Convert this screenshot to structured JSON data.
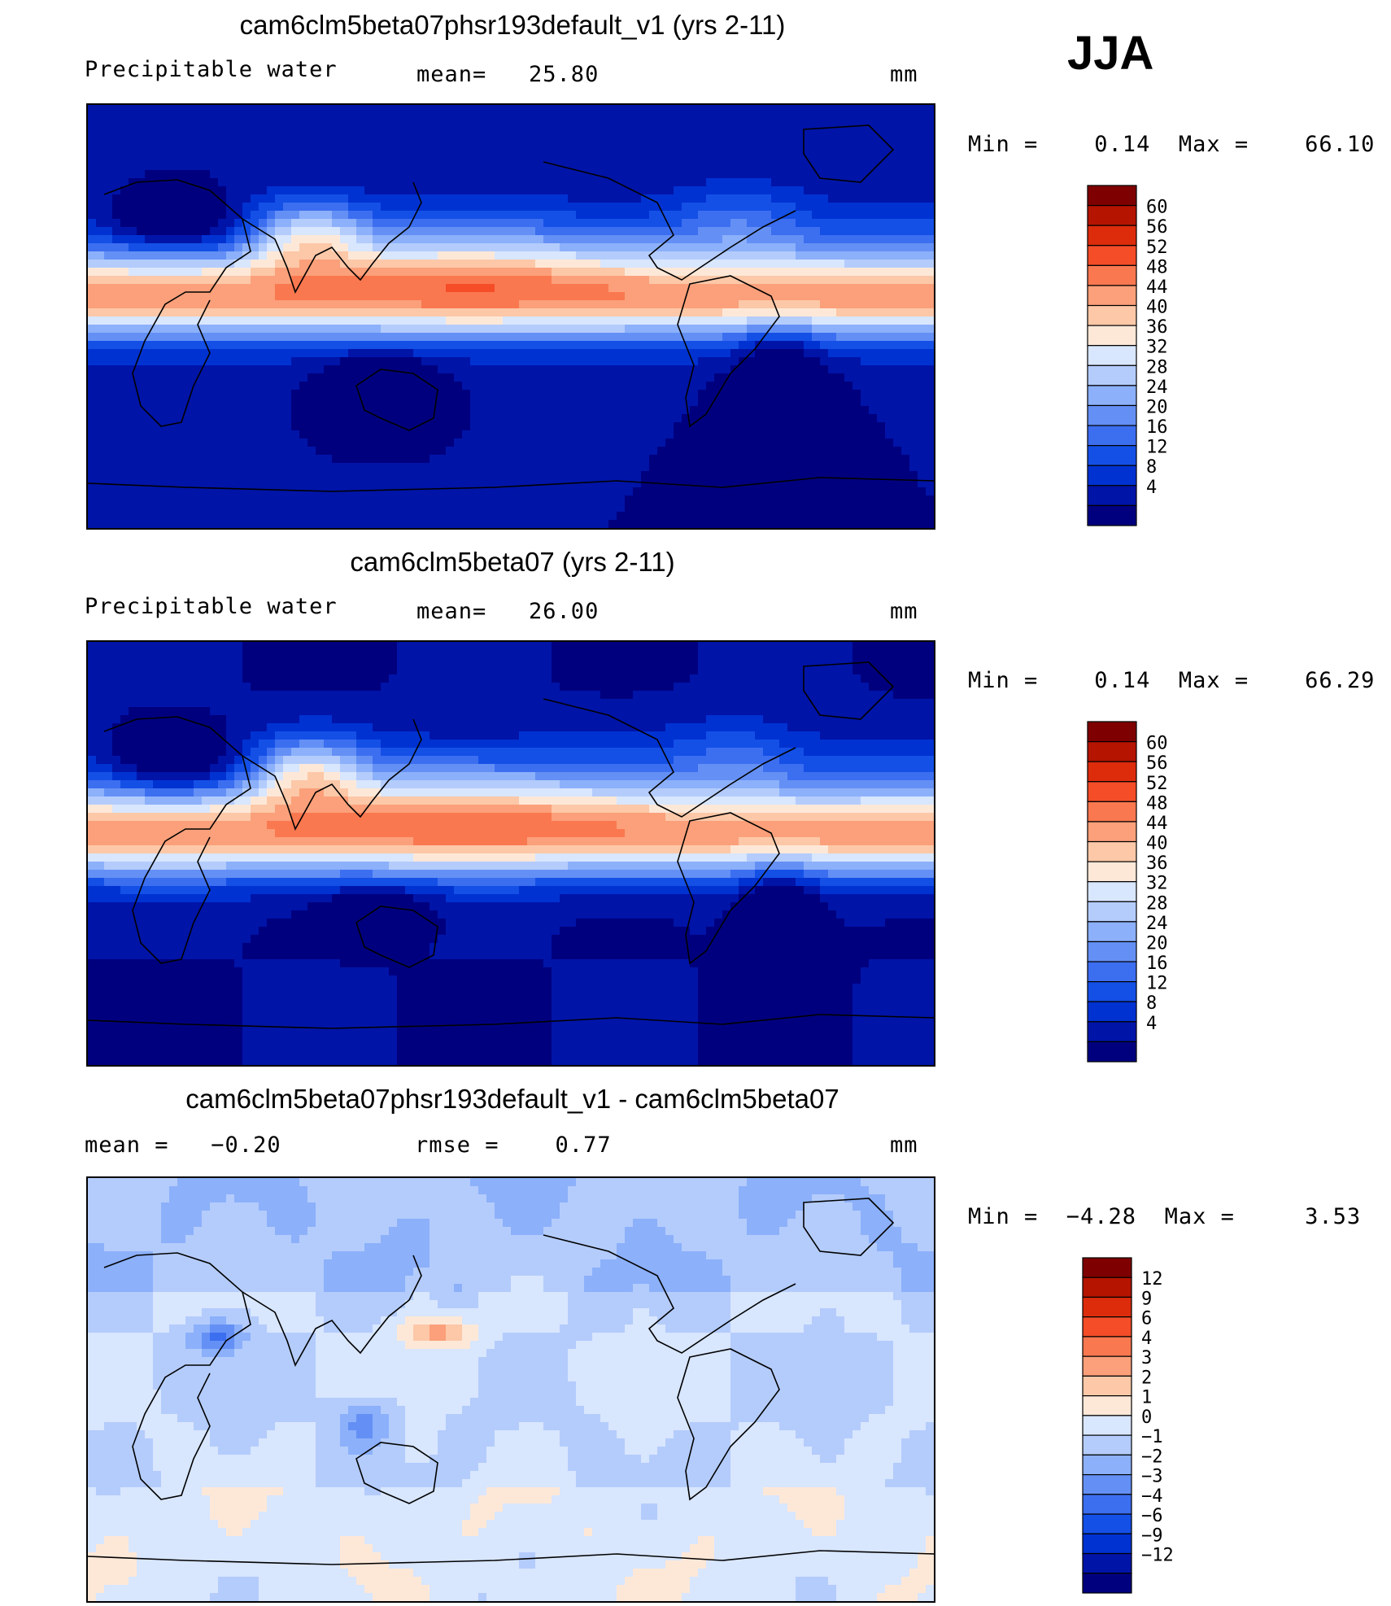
{
  "season": "JJA",
  "colors": {
    "abs_levels": [
      "#00007f",
      "#0014a8",
      "#0032d2",
      "#1450e6",
      "#3c6ef0",
      "#6490f5",
      "#8cb0fa",
      "#b4ccfc",
      "#d8e6fe",
      "#fde8d8",
      "#fcc8a8",
      "#fba07a",
      "#fa7850",
      "#f44d28",
      "#dc2c0c",
      "#b41400",
      "#7f0000"
    ],
    "diff_levels": [
      "#00007f",
      "#0014a8",
      "#0032d2",
      "#1450e6",
      "#3c6ef0",
      "#6490f5",
      "#8cb0fa",
      "#b4ccfc",
      "#d8e6fe",
      "#fde8d8",
      "#fcc8a8",
      "#fba07a",
      "#fa7850",
      "#f44d28",
      "#dc2c0c",
      "#b41400",
      "#7f0000"
    ],
    "coast": "#000000"
  },
  "panels": [
    {
      "title": "cam6clm5beta07phsr193default_v1 (yrs 2-11)",
      "variable": "Precipitable water",
      "stat_text": "mean=   25.80",
      "units": "mm",
      "minmax_text": "Min =    0.14  Max =    66.10"
    },
    {
      "title": "cam6clm5beta07 (yrs 2-11)",
      "variable": "Precipitable water",
      "stat_text": "mean=   26.00",
      "units": "mm",
      "minmax_text": "Min =    0.14  Max =    66.29"
    },
    {
      "title": "cam6clm5beta07phsr193default_v1 - cam6clm5beta07",
      "variable": "mean =   −0.20",
      "stat_text": "rmse =    0.77",
      "units": "mm",
      "minmax_text": "Min =  −4.28  Max =     3.53"
    }
  ],
  "chart_data": [
    {
      "type": "heatmap",
      "title": "cam6clm5beta07phsr193default_v1 (yrs 2-11)",
      "field": "Precipitable water",
      "season": "JJA",
      "units": "mm",
      "mean": 25.8,
      "min": 0.14,
      "max": 66.1,
      "contour_levels": [
        4,
        8,
        12,
        16,
        20,
        24,
        28,
        32,
        36,
        40,
        44,
        48,
        52,
        56,
        60
      ],
      "colorbar_labels": [
        "60",
        "56",
        "52",
        "48",
        "44",
        "40",
        "36",
        "32",
        "28",
        "24",
        "20",
        "16",
        "12",
        "8",
        "4"
      ]
    },
    {
      "type": "heatmap",
      "title": "cam6clm5beta07 (yrs 2-11)",
      "field": "Precipitable water",
      "season": "JJA",
      "units": "mm",
      "mean": 26.0,
      "min": 0.14,
      "max": 66.29,
      "contour_levels": [
        4,
        8,
        12,
        16,
        20,
        24,
        28,
        32,
        36,
        40,
        44,
        48,
        52,
        56,
        60
      ],
      "colorbar_labels": [
        "60",
        "56",
        "52",
        "48",
        "44",
        "40",
        "36",
        "32",
        "28",
        "24",
        "20",
        "16",
        "12",
        "8",
        "4"
      ]
    },
    {
      "type": "heatmap",
      "title": "cam6clm5beta07phsr193default_v1 - cam6clm5beta07",
      "season": "JJA",
      "units": "mm",
      "mean": -0.2,
      "rmse": 0.77,
      "min": -4.28,
      "max": 3.53,
      "contour_levels": [
        -12,
        -9,
        -6,
        -4,
        -3,
        -2,
        -1,
        0,
        1,
        2,
        3,
        4,
        6,
        9,
        12
      ],
      "colorbar_labels": [
        "12",
        "9",
        "6",
        "4",
        "3",
        "2",
        "1",
        "0",
        "−1",
        "−2",
        "−3",
        "−4",
        "−6",
        "−9",
        "−12"
      ]
    }
  ]
}
